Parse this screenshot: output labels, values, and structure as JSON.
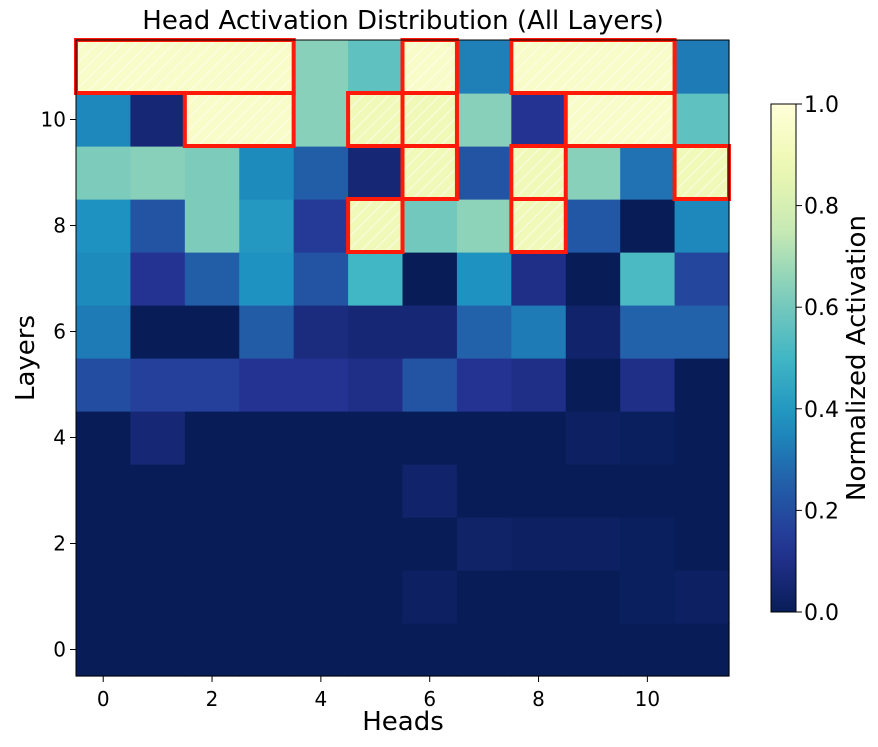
{
  "chart_data": {
    "type": "heatmap",
    "title": "Head Activation Distribution (All Layers)",
    "xlabel": "Heads",
    "ylabel": "Layers",
    "xlim": [
      -0.5,
      11.5
    ],
    "ylim": [
      -0.5,
      11.5
    ],
    "x_ticks": [
      0,
      2,
      4,
      6,
      8,
      10
    ],
    "x_tick_labels": [
      "0",
      "2",
      "4",
      "6",
      "8",
      "10"
    ],
    "y_ticks": [
      0,
      2,
      4,
      6,
      8,
      10
    ],
    "y_tick_labels": [
      "0",
      "2",
      "4",
      "6",
      "8",
      "10"
    ],
    "colormap": "YlGnBu",
    "colorbar": {
      "label": "Normalized Activation",
      "range": [
        0.0,
        1.0
      ],
      "ticks": [
        0.0,
        0.2,
        0.4,
        0.6,
        0.8,
        1.0
      ],
      "tick_labels": [
        "0.0",
        "0.2",
        "0.4",
        "0.6",
        "0.8",
        "1.0"
      ]
    },
    "layers": [
      0,
      1,
      2,
      3,
      4,
      5,
      6,
      7,
      8,
      9,
      10,
      11
    ],
    "heads": [
      0,
      1,
      2,
      3,
      4,
      5,
      6,
      7,
      8,
      9,
      10,
      11
    ],
    "values": [
      [
        0.0,
        0.0,
        0.0,
        0.0,
        0.0,
        0.0,
        0.0,
        0.0,
        0.0,
        0.0,
        0.0,
        0.0
      ],
      [
        0.0,
        0.0,
        0.0,
        0.0,
        0.0,
        0.0,
        0.02,
        0.0,
        0.0,
        0.0,
        0.01,
        0.02
      ],
      [
        0.0,
        0.0,
        0.0,
        0.0,
        0.0,
        0.0,
        0.0,
        0.03,
        0.02,
        0.02,
        0.01,
        0.0
      ],
      [
        0.0,
        0.0,
        0.0,
        0.0,
        0.0,
        0.0,
        0.04,
        0.0,
        0.0,
        0.0,
        0.0,
        0.0
      ],
      [
        0.0,
        0.06,
        0.0,
        0.0,
        0.0,
        0.0,
        0.0,
        0.0,
        0.0,
        0.02,
        0.01,
        0.0
      ],
      [
        0.2,
        0.16,
        0.16,
        0.12,
        0.12,
        0.1,
        0.22,
        0.12,
        0.1,
        0.0,
        0.1,
        0.0
      ],
      [
        0.32,
        0.0,
        0.0,
        0.24,
        0.08,
        0.06,
        0.06,
        0.26,
        0.32,
        0.04,
        0.26,
        0.26
      ],
      [
        0.36,
        0.12,
        0.25,
        0.38,
        0.22,
        0.5,
        0.0,
        0.38,
        0.1,
        0.0,
        0.52,
        0.18
      ],
      [
        0.38,
        0.22,
        0.62,
        0.4,
        0.14,
        0.9,
        0.6,
        0.65,
        0.9,
        0.23,
        0.0,
        0.35
      ],
      [
        0.62,
        0.64,
        0.62,
        0.36,
        0.25,
        0.06,
        0.9,
        0.22,
        0.9,
        0.64,
        0.3,
        0.9
      ],
      [
        0.35,
        0.06,
        0.95,
        0.95,
        0.64,
        0.9,
        0.9,
        0.64,
        0.12,
        0.95,
        0.95,
        0.56
      ],
      [
        0.95,
        0.95,
        0.95,
        0.95,
        0.64,
        0.56,
        0.95,
        0.33,
        0.95,
        0.95,
        0.95,
        0.32
      ]
    ],
    "highlighted_cells": [
      [
        0,
        11
      ],
      [
        1,
        11
      ],
      [
        2,
        11
      ],
      [
        3,
        11
      ],
      [
        6,
        11
      ],
      [
        8,
        11
      ],
      [
        9,
        11
      ],
      [
        10,
        11
      ],
      [
        2,
        10
      ],
      [
        3,
        10
      ],
      [
        5,
        10
      ],
      [
        6,
        10
      ],
      [
        9,
        10
      ],
      [
        10,
        10
      ],
      [
        6,
        9
      ],
      [
        8,
        9
      ],
      [
        11,
        9
      ],
      [
        5,
        8
      ],
      [
        8,
        8
      ]
    ],
    "highlight_boxes": [
      {
        "heads": [
          0,
          3
        ],
        "layers": [
          11,
          11
        ]
      },
      {
        "heads": [
          6,
          6
        ],
        "layers": [
          11,
          11
        ]
      },
      {
        "heads": [
          8,
          10
        ],
        "layers": [
          11,
          11
        ]
      },
      {
        "heads": [
          2,
          3
        ],
        "layers": [
          10,
          10
        ]
      },
      {
        "heads": [
          5,
          5
        ],
        "layers": [
          10,
          10
        ]
      },
      {
        "heads": [
          6,
          6
        ],
        "layers": [
          10,
          10
        ]
      },
      {
        "heads": [
          9,
          10
        ],
        "layers": [
          10,
          10
        ]
      },
      {
        "heads": [
          6,
          6
        ],
        "layers": [
          9,
          9
        ]
      },
      {
        "heads": [
          8,
          8
        ],
        "layers": [
          9,
          9
        ]
      },
      {
        "heads": [
          11,
          11
        ],
        "layers": [
          9,
          9
        ]
      },
      {
        "heads": [
          5,
          5
        ],
        "layers": [
          8,
          8
        ]
      },
      {
        "heads": [
          8,
          8
        ],
        "layers": [
          8,
          8
        ]
      }
    ],
    "highlight_color": "#ff1a0a"
  }
}
